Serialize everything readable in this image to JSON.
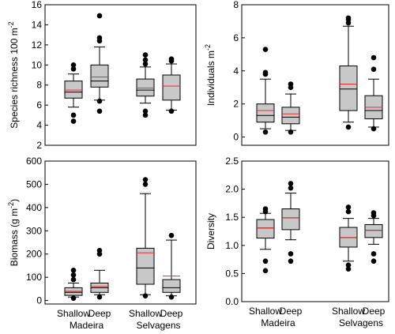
{
  "style": {
    "box_fill": "#c8c8c8",
    "median_color": "#000000",
    "mean_color": "#e03030",
    "outlier_color": "#000000"
  },
  "chart_data": [
    {
      "type": "box",
      "id": "richness",
      "ylabel": "Species richness 100 m",
      "ylabel_sup": "-2",
      "ylim": [
        2,
        16
      ],
      "yticks": [
        2,
        4,
        6,
        8,
        10,
        12,
        14,
        16
      ],
      "group_labels": [],
      "category_labels": [],
      "boxes": [
        {
          "whislo": 5.8,
          "q1": 6.7,
          "med": 7.3,
          "mean": 7.5,
          "q3": 8.4,
          "whishi": 9.1,
          "fliers": [
            4.4,
            5.0,
            9.6,
            10.0
          ]
        },
        {
          "whislo": 6.5,
          "q1": 7.8,
          "med": 8.4,
          "mean": 8.8,
          "q3": 10.0,
          "whishi": 11.8,
          "fliers": [
            5.4,
            6.4,
            12.4,
            12.7,
            14.9
          ]
        },
        {
          "whislo": 6.2,
          "q1": 6.9,
          "med": 7.5,
          "mean": 7.7,
          "q3": 8.6,
          "whishi": 9.8,
          "fliers": [
            5.0,
            5.4,
            10.1,
            10.5,
            11.0
          ]
        },
        {
          "whislo": 5.5,
          "q1": 6.5,
          "med": 7.9,
          "mean": 7.9,
          "q3": 9.0,
          "whishi": 10.1,
          "fliers": [
            5.4,
            10.4,
            10.6
          ]
        }
      ]
    },
    {
      "type": "box",
      "id": "individuals",
      "ylabel": "Individuals m",
      "ylabel_sup": "-2",
      "ylim": [
        -0.5,
        8
      ],
      "yticks": [
        0,
        2,
        4,
        6,
        8
      ],
      "group_labels": [],
      "category_labels": [],
      "boxes": [
        {
          "whislo": 0.5,
          "q1": 0.9,
          "med": 1.3,
          "mean": 1.6,
          "q3": 2.0,
          "whishi": 3.5,
          "fliers": [
            0.3,
            3.8,
            3.9,
            5.3
          ]
        },
        {
          "whislo": 0.4,
          "q1": 0.8,
          "med": 1.2,
          "mean": 1.4,
          "q3": 1.8,
          "whishi": 2.6,
          "fliers": [
            0.3,
            3.0,
            3.2
          ]
        },
        {
          "whislo": 0.9,
          "q1": 1.6,
          "med": 2.9,
          "mean": 3.2,
          "q3": 4.3,
          "whishi": 6.7,
          "fliers": [
            0.6,
            6.9,
            7.1,
            7.2
          ]
        },
        {
          "whislo": 0.6,
          "q1": 1.1,
          "med": 1.6,
          "mean": 1.8,
          "q3": 2.5,
          "whishi": 3.5,
          "fliers": [
            0.5,
            4.1,
            4.8
          ]
        }
      ]
    },
    {
      "type": "box",
      "id": "biomass",
      "ylabel": "Biomass (g m",
      "ylabel_sup": "-2",
      "ylabel_suffix": ")",
      "ylim": [
        -15,
        600
      ],
      "yticks": [
        0,
        100,
        200,
        300,
        400,
        500,
        600
      ],
      "group_labels": [
        "Madeira",
        "Selvagens"
      ],
      "category_labels": [
        "Shallow",
        "Deep",
        "Shallow",
        "Deep"
      ],
      "boxes": [
        {
          "whislo": 15,
          "q1": 22,
          "med": 35,
          "mean": 40,
          "q3": 55,
          "whishi": 75,
          "fliers": [
            10,
            90,
            110,
            130
          ]
        },
        {
          "whislo": 25,
          "q1": 35,
          "med": 55,
          "mean": 60,
          "q3": 75,
          "whishi": 130,
          "fliers": [
            15,
            200,
            215
          ]
        },
        {
          "whislo": 25,
          "q1": 70,
          "med": 140,
          "mean": 205,
          "q3": 225,
          "whishi": 460,
          "fliers": [
            20,
            500,
            520
          ]
        },
        {
          "whislo": 20,
          "q1": 35,
          "med": 55,
          "mean": 105,
          "q3": 90,
          "whishi": 260,
          "fliers": [
            15,
            280
          ]
        }
      ]
    },
    {
      "type": "box",
      "id": "diversity",
      "ylabel": "Diversity",
      "ylabel_sup": "",
      "ylim": [
        0,
        2.5
      ],
      "yticks": [
        0.0,
        0.5,
        1.0,
        1.5,
        2.0,
        2.5
      ],
      "tick_decimals": 1,
      "group_labels": [
        "Madeira",
        "Selvagens"
      ],
      "category_labels": [
        "Shallow",
        "Deep",
        "Shallow",
        "Deep"
      ],
      "boxes": [
        {
          "whislo": 0.93,
          "q1": 1.13,
          "med": 1.31,
          "mean": 1.31,
          "q3": 1.46,
          "whishi": 1.57,
          "fliers": [
            0.55,
            0.72,
            1.6,
            1.65
          ]
        },
        {
          "whislo": 1.1,
          "q1": 1.28,
          "med": 1.49,
          "mean": 1.49,
          "q3": 1.65,
          "whishi": 1.93,
          "fliers": [
            0.72,
            0.85,
            2.02,
            2.1
          ]
        },
        {
          "whislo": 0.72,
          "q1": 0.97,
          "med": 1.14,
          "mean": 1.14,
          "q3": 1.32,
          "whishi": 1.48,
          "fliers": [
            0.58,
            0.65,
            1.6,
            1.68
          ]
        },
        {
          "whislo": 1.02,
          "q1": 1.14,
          "med": 1.27,
          "mean": 1.27,
          "q3": 1.37,
          "whishi": 1.48,
          "fliers": [
            0.72,
            0.85,
            1.53,
            1.58
          ]
        }
      ]
    }
  ]
}
